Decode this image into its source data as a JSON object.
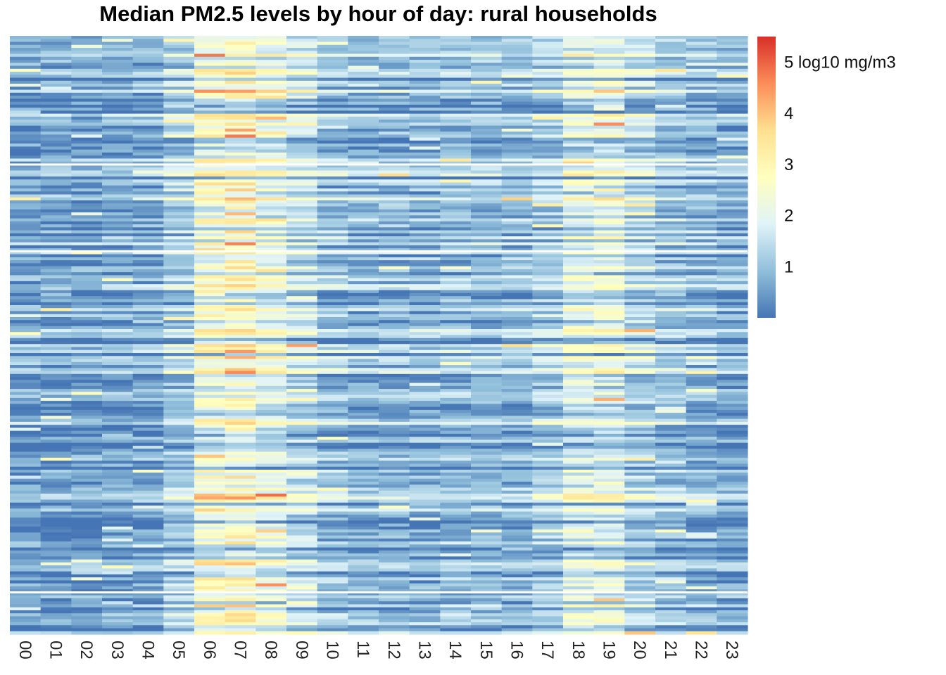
{
  "chart_data": {
    "type": "heatmap",
    "title": "Median PM2.5 levels by hour of day: rural households",
    "xlabel": "",
    "ylabel": "",
    "categories": [
      "00",
      "01",
      "02",
      "03",
      "04",
      "05",
      "06",
      "07",
      "08",
      "09",
      "10",
      "11",
      "12",
      "13",
      "14",
      "15",
      "16",
      "17",
      "18",
      "19",
      "20",
      "21",
      "22",
      "23"
    ],
    "row_count": 200,
    "row_group_breaks": [
      43,
      72,
      186
    ],
    "color_scale": {
      "unit": "log10 mg/m3",
      "ticks": [
        1,
        2,
        3,
        4,
        5
      ],
      "range": [
        0,
        5.5
      ],
      "stops": [
        "#4575b4",
        "#91bfdb",
        "#e0f3f8",
        "#ffffbf",
        "#fee090",
        "#fc8d59",
        "#d73027"
      ]
    },
    "hourly_profile_typical": [
      0.4,
      0.4,
      0.4,
      0.5,
      0.6,
      1.2,
      2.6,
      2.8,
      2.2,
      1.6,
      1.0,
      0.8,
      0.8,
      0.8,
      0.9,
      0.9,
      0.9,
      1.2,
      2.0,
      2.1,
      1.4,
      1.0,
      0.8,
      0.6
    ]
  }
}
